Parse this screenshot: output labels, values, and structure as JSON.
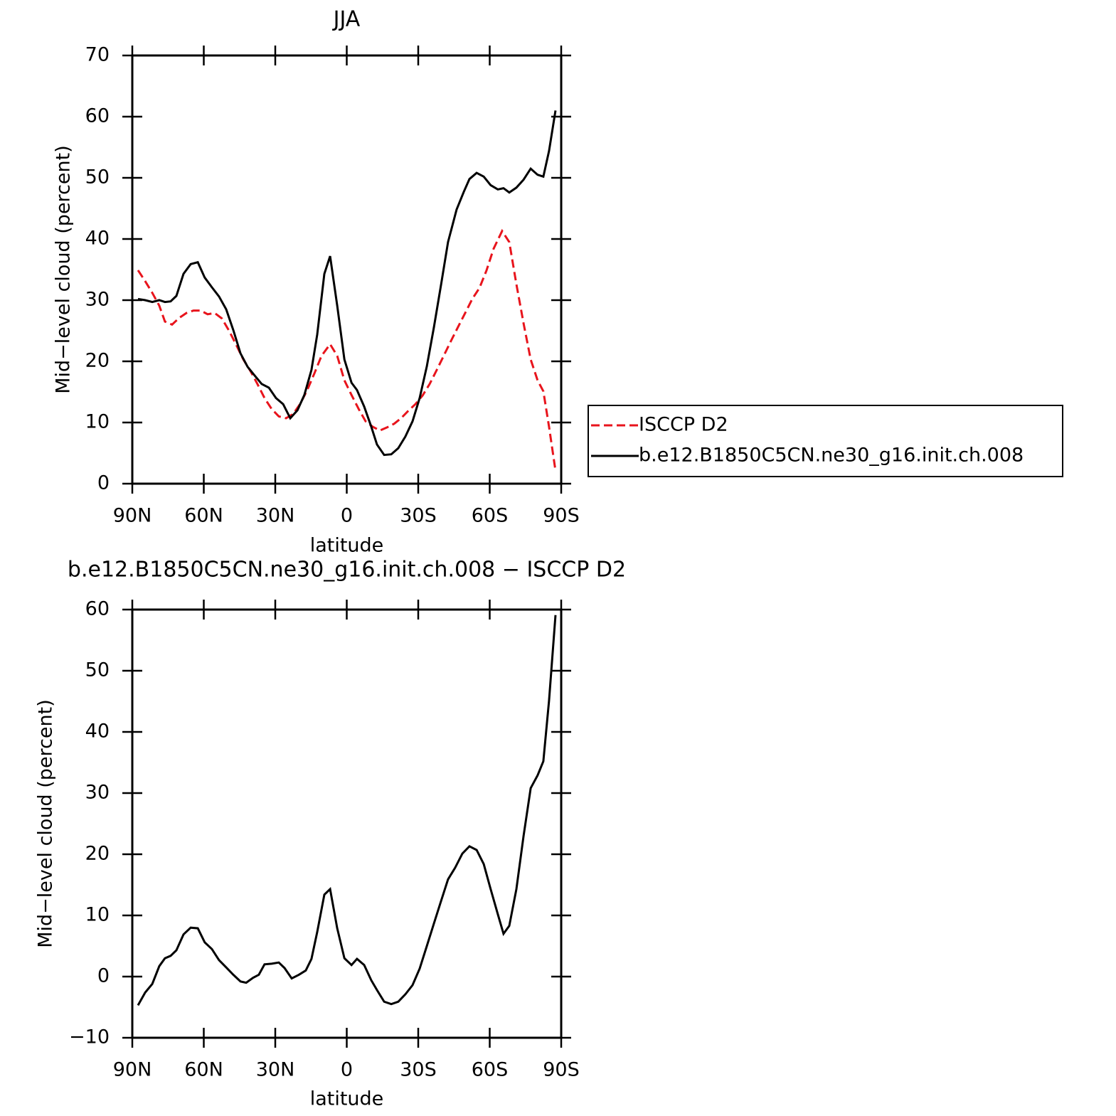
{
  "chart_data": [
    {
      "type": "line",
      "title": "JJA",
      "xlabel": "latitude",
      "ylabel": "Mid−level cloud (percent)",
      "xlim": [
        90,
        -90
      ],
      "ylim": [
        0,
        70
      ],
      "xticks": [
        {
          "value": 90,
          "label": "90N"
        },
        {
          "value": 60,
          "label": "60N"
        },
        {
          "value": 30,
          "label": "30N"
        },
        0,
        {
          "value": -30,
          "label": "30S"
        },
        {
          "value": -60,
          "label": "60S"
        },
        {
          "value": -90,
          "label": "90S"
        }
      ],
      "yticks": [
        0,
        10,
        20,
        30,
        40,
        50,
        60,
        70
      ],
      "legend": "right",
      "series": [
        {
          "name": "ISCCP D2",
          "color": "#e8141c",
          "dash": "dashed",
          "x": [
            87.6,
            84.6,
            81.6,
            78.7,
            76.3,
            73.3,
            70.3,
            67.3,
            64.3,
            61.3,
            58.4,
            55.4,
            52.4,
            49.4,
            46.4,
            43.4,
            40.4,
            37.5,
            34.5,
            31.5,
            28.5,
            25.5,
            22.5,
            19.6,
            16.6,
            13.6,
            10.6,
            7.0,
            4.0,
            1.0,
            -2.0,
            -5.0,
            -7.9,
            -10.9,
            -13.9,
            -16.9,
            -19.9,
            -22.8,
            -25.8,
            -28.8,
            -31.8,
            -34.8,
            -37.8,
            -40.7,
            -43.7,
            -46.7,
            -49.7,
            -52.7,
            -55.7,
            -58.7,
            -61.6,
            -65.2,
            -68.2,
            -71.2,
            -74.2,
            -77.2,
            -80.1,
            -82.5,
            -84.9,
            -87.6
          ],
          "values": [
            34.9,
            33.1,
            31.2,
            29.1,
            26.5,
            26.0,
            27.1,
            27.9,
            28.3,
            28.3,
            27.7,
            27.9,
            27.0,
            25.0,
            22.7,
            20.3,
            18.4,
            16.3,
            14.0,
            12.2,
            11.0,
            10.7,
            11.4,
            13.0,
            15.3,
            18.0,
            20.9,
            22.8,
            20.9,
            16.9,
            14.5,
            12.2,
            10.2,
            9.3,
            8.7,
            9.2,
            9.8,
            10.7,
            11.9,
            13.0,
            14.4,
            16.3,
            18.6,
            20.9,
            23.3,
            25.6,
            27.9,
            30.2,
            32.0,
            34.9,
            38.4,
            41.3,
            39.5,
            32.6,
            26.2,
            20.3,
            16.9,
            15.1,
            9.3,
            2.1
          ]
        },
        {
          "name": "b.e12.B1850C5CN.ne30_g16.init.ch.008",
          "color": "#000000",
          "dash": "solid",
          "x": [
            87.6,
            84.6,
            81.6,
            78.7,
            76.3,
            73.9,
            71.5,
            68.5,
            65.5,
            62.5,
            59.6,
            56.6,
            53.6,
            50.6,
            47.6,
            44.6,
            41.6,
            38.7,
            35.7,
            32.7,
            29.7,
            26.7,
            23.7,
            20.7,
            17.8,
            14.8,
            12.4,
            9.4,
            7.0,
            4.0,
            1.0,
            -2.0,
            -4.3,
            -7.3,
            -10.3,
            -12.7,
            -15.7,
            -18.7,
            -21.6,
            -24.6,
            -27.6,
            -30.6,
            -33.6,
            -36.6,
            -39.6,
            -42.5,
            -46.1,
            -49.1,
            -51.5,
            -54.5,
            -57.5,
            -60.4,
            -63.4,
            -65.8,
            -68.2,
            -71.2,
            -74.2,
            -77.2,
            -80.1,
            -82.5,
            -84.9,
            -87.6
          ],
          "values": [
            30.2,
            30.0,
            29.7,
            30.0,
            29.7,
            29.8,
            30.7,
            34.3,
            35.9,
            36.2,
            33.7,
            32.1,
            30.6,
            28.5,
            25.1,
            21.3,
            19.1,
            17.7,
            16.3,
            15.7,
            14.0,
            13.0,
            10.7,
            12.0,
            14.5,
            18.6,
            24.4,
            34.3,
            37.2,
            29.1,
            20.3,
            16.5,
            15.3,
            12.6,
            9.3,
            6.4,
            4.7,
            4.8,
            5.8,
            7.7,
            10.2,
            14.0,
            19.2,
            25.6,
            32.6,
            39.5,
            44.8,
            47.7,
            49.8,
            50.8,
            50.2,
            48.8,
            48.1,
            48.3,
            47.6,
            48.4,
            49.7,
            51.5,
            50.5,
            50.2,
            54.4,
            61.0
          ]
        }
      ]
    },
    {
      "type": "line",
      "title": "b.e12.B1850C5CN.ne30_g16.init.ch.008 − ISCCP D2",
      "xlabel": "latitude",
      "ylabel": "Mid−level cloud (percent)",
      "xlim": [
        90,
        -90
      ],
      "ylim": [
        -10,
        60
      ],
      "xticks": [
        {
          "value": 90,
          "label": "90N"
        },
        {
          "value": 60,
          "label": "60N"
        },
        {
          "value": 30,
          "label": "30N"
        },
        0,
        {
          "value": -30,
          "label": "30S"
        },
        {
          "value": -60,
          "label": "60S"
        },
        {
          "value": -90,
          "label": "90S"
        }
      ],
      "yticks": [
        {
          "value": -10,
          "label": "−10"
        },
        0,
        10,
        20,
        30,
        40,
        50,
        60
      ],
      "series": [
        {
          "color": "#000000",
          "dash": "solid",
          "x": [
            87.6,
            84.6,
            81.6,
            78.7,
            76.3,
            73.9,
            71.5,
            68.5,
            65.5,
            62.5,
            59.6,
            56.6,
            53.6,
            50.6,
            47.6,
            44.6,
            42.2,
            39.3,
            36.9,
            34.5,
            31.5,
            28.5,
            26.1,
            23.1,
            20.1,
            17.2,
            14.8,
            12.4,
            9.4,
            7.0,
            4.0,
            1.0,
            -2.0,
            -4.3,
            -7.3,
            -10.3,
            -12.7,
            -15.7,
            -18.7,
            -21.6,
            -24.6,
            -27.6,
            -30.6,
            -33.6,
            -36.6,
            -39.6,
            -42.5,
            -45.5,
            -48.5,
            -51.5,
            -54.5,
            -57.5,
            -60.4,
            -63.4,
            -65.8,
            -68.2,
            -71.2,
            -74.2,
            -77.2,
            -80.1,
            -82.5,
            -84.9,
            -87.6
          ],
          "values": [
            -4.7,
            -2.6,
            -1.2,
            1.7,
            3.0,
            3.4,
            4.3,
            6.9,
            8.0,
            7.9,
            5.6,
            4.5,
            2.7,
            1.5,
            0.3,
            -0.8,
            -1.0,
            -0.2,
            0.3,
            2.0,
            2.1,
            2.3,
            1.4,
            -0.3,
            0.3,
            1.0,
            2.9,
            7.3,
            13.4,
            14.3,
            7.9,
            3.0,
            1.9,
            2.9,
            1.9,
            -0.6,
            -2.2,
            -4.1,
            -4.5,
            -4.1,
            -2.9,
            -1.4,
            1.3,
            5.0,
            8.7,
            12.4,
            15.9,
            17.8,
            20.1,
            21.3,
            20.7,
            18.4,
            14.3,
            10.2,
            7.0,
            8.3,
            14.3,
            23.0,
            30.8,
            32.9,
            35.2,
            45.1,
            59.1
          ]
        }
      ]
    }
  ]
}
